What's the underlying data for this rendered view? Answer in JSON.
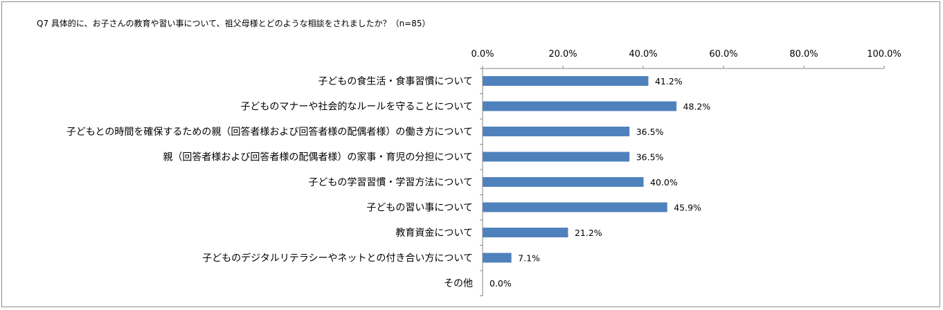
{
  "chart_data": {
    "type": "bar",
    "orientation": "horizontal",
    "title": "Q7 具体的に、お子さんの教育や習い事について、祖父母様とどのような相談をされましたか？（n=85）",
    "categories": [
      "子どもの食生活・食事習慣について",
      "子どものマナーや社会的なルールを守ることについて",
      "子どもとの時間を確保するための親（回答者様および回答者様の配偶者様）の働き方について",
      "親（回答者様および回答者様の配偶者様）の家事・育児の分担について",
      "子どもの学習習慣・学習方法について",
      "子どもの習い事について",
      "教育資金について",
      "子どものデジタルリテラシーやネットとの付き合い方について",
      "その他"
    ],
    "values": [
      41.2,
      48.2,
      36.5,
      36.5,
      40.0,
      45.9,
      21.2,
      7.1,
      0.0
    ],
    "value_labels": [
      "41.2%",
      "48.2%",
      "36.5%",
      "36.5%",
      "40.0%",
      "45.9%",
      "21.2%",
      "7.1%",
      "0.0%"
    ],
    "xlim": [
      0,
      100
    ],
    "ticks": [
      0,
      20,
      40,
      60,
      80,
      100
    ],
    "tick_labels": [
      "0.0%",
      "20.0%",
      "40.0%",
      "60.0%",
      "80.0%",
      "100.0%"
    ],
    "axis_position": "top",
    "grid": false,
    "legend": false,
    "bar_color": "#4f81bd",
    "axis_color": "#868686"
  }
}
